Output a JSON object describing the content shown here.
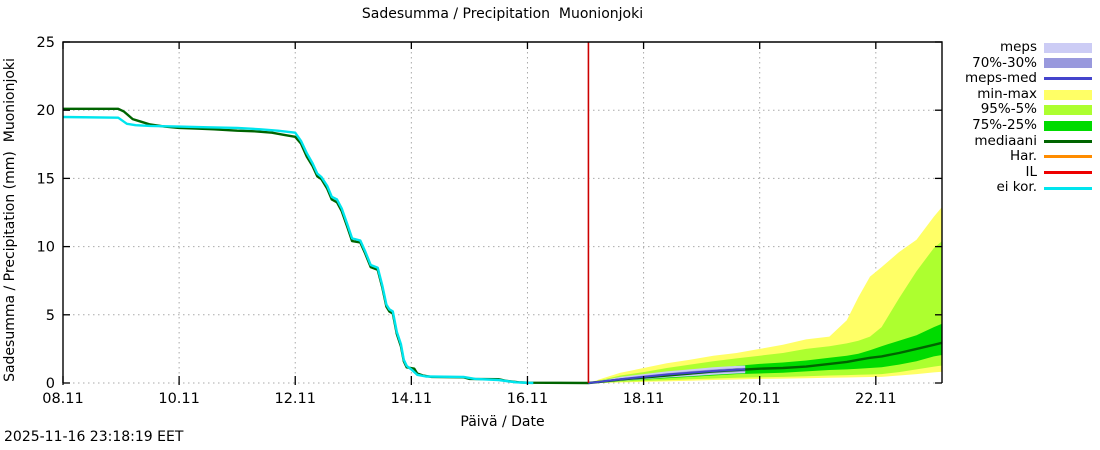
{
  "title": "Sadesumma / Precipitation  Muonionjoki",
  "timestamp": "2025-11-16 23:18:19 EET",
  "axes": {
    "y_label": "Sadesumma / Precipitation (mm)  Muonionjoki",
    "x_label": "Päivä / Date",
    "y_ticks": [
      0,
      5,
      10,
      15,
      20,
      25
    ],
    "x_tick_labels": [
      "08.11",
      "10.11",
      "12.11",
      "14.11",
      "16.11",
      "18.11",
      "20.11",
      "22.11"
    ],
    "x_tick_days": [
      8,
      10,
      12,
      14,
      16,
      18,
      20,
      22
    ]
  },
  "colors": {
    "meps_band": "#ccccf5",
    "meps7030_band": "#9999dd",
    "meps_med_line": "#4444cc",
    "minmax_band": "#ffff66",
    "p95_band": "#adff2f",
    "p75_band": "#00db00",
    "mediaani_line": "#006400",
    "har_line": "#ff8c00",
    "il_line": "#ee0000",
    "eikor_line": "#00e5ee",
    "now_line": "#cc0000",
    "grid": "#aaaaaa",
    "frame": "#000000"
  },
  "chart_data": {
    "type": "line",
    "title": "Sadesumma / Precipitation  Muonionjoki",
    "xlabel": "Päivä / Date",
    "ylabel": "Sadesumma / Precipitation (mm)  Muonionjoki",
    "x_unit": "day of November (label DD.11)",
    "xlim": [
      8,
      23.14
    ],
    "ylim": [
      0,
      25
    ],
    "grid": "dotted, horizontal every 5 mm, vertical every 2 days, dotted zero axis",
    "legend_position": "outside right",
    "forecast_start_day": 17.05,
    "legend": [
      {
        "label": "meps",
        "type": "band",
        "color": "#ccccf5"
      },
      {
        "label": "70%-30%",
        "type": "band",
        "color": "#9999dd"
      },
      {
        "label": "meps-med",
        "type": "line",
        "color": "#4444cc"
      },
      {
        "label": "min-max",
        "type": "band",
        "color": "#ffff66"
      },
      {
        "label": "95%-5%",
        "type": "band",
        "color": "#adff2f"
      },
      {
        "label": "75%-25%",
        "type": "band",
        "color": "#00db00"
      },
      {
        "label": "mediaani",
        "type": "line",
        "color": "#006400"
      },
      {
        "label": "Har.",
        "type": "line",
        "color": "#ff8c00"
      },
      {
        "label": "IL",
        "type": "line",
        "color": "#ee0000"
      },
      {
        "label": "ei kor.",
        "type": "line",
        "color": "#00e5ee"
      }
    ],
    "series": [
      {
        "name": "mediaani",
        "color": "#006400",
        "width": 2.4,
        "points": [
          [
            8.0,
            20.1
          ],
          [
            8.95,
            20.1
          ],
          [
            9.05,
            19.9
          ],
          [
            9.2,
            19.35
          ],
          [
            9.35,
            19.15
          ],
          [
            9.5,
            18.95
          ],
          [
            9.75,
            18.8
          ],
          [
            10.0,
            18.7
          ],
          [
            10.3,
            18.65
          ],
          [
            10.6,
            18.6
          ],
          [
            11.0,
            18.5
          ],
          [
            11.3,
            18.45
          ],
          [
            11.6,
            18.35
          ],
          [
            11.8,
            18.2
          ],
          [
            12.0,
            18.05
          ],
          [
            12.1,
            17.55
          ],
          [
            12.2,
            16.6
          ],
          [
            12.3,
            15.9
          ],
          [
            12.38,
            15.15
          ],
          [
            12.45,
            14.95
          ],
          [
            12.55,
            14.25
          ],
          [
            12.63,
            13.45
          ],
          [
            12.72,
            13.25
          ],
          [
            12.8,
            12.6
          ],
          [
            12.9,
            11.4
          ],
          [
            12.98,
            10.4
          ],
          [
            13.12,
            10.3
          ],
          [
            13.2,
            9.55
          ],
          [
            13.3,
            8.5
          ],
          [
            13.42,
            8.3
          ],
          [
            13.5,
            7.0
          ],
          [
            13.57,
            5.6
          ],
          [
            13.62,
            5.25
          ],
          [
            13.68,
            5.1
          ],
          [
            13.75,
            3.6
          ],
          [
            13.82,
            2.7
          ],
          [
            13.87,
            1.6
          ],
          [
            13.92,
            1.15
          ],
          [
            14.05,
            1.05
          ],
          [
            14.1,
            0.7
          ],
          [
            14.2,
            0.55
          ],
          [
            14.35,
            0.45
          ],
          [
            14.9,
            0.42
          ],
          [
            15.0,
            0.3
          ],
          [
            15.5,
            0.28
          ],
          [
            15.65,
            0.15
          ],
          [
            15.85,
            0.05
          ],
          [
            16.0,
            0.02
          ],
          [
            17.05,
            0.0
          ],
          [
            17.3,
            0.1
          ],
          [
            17.6,
            0.25
          ],
          [
            18.0,
            0.4
          ],
          [
            18.4,
            0.55
          ],
          [
            18.8,
            0.7
          ],
          [
            19.2,
            0.85
          ],
          [
            19.6,
            0.95
          ],
          [
            20.0,
            1.05
          ],
          [
            20.4,
            1.1
          ],
          [
            20.8,
            1.2
          ],
          [
            21.2,
            1.4
          ],
          [
            21.5,
            1.55
          ],
          [
            21.7,
            1.7
          ],
          [
            21.9,
            1.85
          ],
          [
            22.1,
            1.95
          ],
          [
            22.4,
            2.2
          ],
          [
            22.7,
            2.5
          ],
          [
            23.0,
            2.8
          ],
          [
            23.14,
            2.95
          ]
        ]
      },
      {
        "name": "ei kor.",
        "color": "#00e5ee",
        "width": 2.4,
        "points": [
          [
            8.0,
            19.5
          ],
          [
            8.95,
            19.45
          ],
          [
            9.1,
            19.0
          ],
          [
            9.25,
            18.9
          ],
          [
            9.5,
            18.85
          ],
          [
            10.0,
            18.8
          ],
          [
            10.5,
            18.75
          ],
          [
            11.0,
            18.7
          ],
          [
            11.4,
            18.6
          ],
          [
            11.7,
            18.5
          ],
          [
            12.0,
            18.35
          ],
          [
            12.1,
            17.75
          ],
          [
            12.2,
            16.85
          ],
          [
            12.3,
            16.1
          ],
          [
            12.38,
            15.35
          ],
          [
            12.45,
            15.1
          ],
          [
            12.55,
            14.45
          ],
          [
            12.63,
            13.65
          ],
          [
            12.72,
            13.45
          ],
          [
            12.8,
            12.8
          ],
          [
            12.9,
            11.6
          ],
          [
            12.98,
            10.6
          ],
          [
            13.12,
            10.45
          ],
          [
            13.2,
            9.7
          ],
          [
            13.3,
            8.65
          ],
          [
            13.42,
            8.45
          ],
          [
            13.5,
            7.15
          ],
          [
            13.57,
            5.75
          ],
          [
            13.62,
            5.4
          ],
          [
            13.68,
            5.25
          ],
          [
            13.75,
            3.75
          ],
          [
            13.82,
            2.85
          ],
          [
            13.87,
            1.7
          ],
          [
            13.92,
            1.25
          ],
          [
            14.0,
            1.0
          ],
          [
            14.1,
            0.6
          ],
          [
            14.25,
            0.48
          ],
          [
            14.9,
            0.45
          ],
          [
            15.1,
            0.3
          ],
          [
            15.5,
            0.22
          ],
          [
            15.8,
            0.05
          ],
          [
            16.1,
            0.0
          ]
        ]
      },
      {
        "name": "meps-med",
        "color": "#4444cc",
        "width": 2,
        "points": [
          [
            17.05,
            0.0
          ],
          [
            17.3,
            0.12
          ],
          [
            17.6,
            0.28
          ],
          [
            18.0,
            0.45
          ],
          [
            18.4,
            0.62
          ],
          [
            18.8,
            0.75
          ],
          [
            19.2,
            0.88
          ],
          [
            19.6,
            0.97
          ],
          [
            19.75,
            1.0
          ]
        ]
      }
    ],
    "bands": [
      {
        "name": "min-max",
        "color": "#ffff66",
        "t": [
          17.05,
          17.3,
          17.6,
          18.0,
          18.4,
          18.8,
          19.2,
          19.6,
          20.0,
          20.4,
          20.8,
          21.2,
          21.5,
          21.7,
          21.9,
          22.1,
          22.4,
          22.7,
          23.0,
          23.14
        ],
        "top": [
          0,
          0.35,
          0.75,
          1.1,
          1.45,
          1.7,
          2.0,
          2.2,
          2.5,
          2.8,
          3.2,
          3.4,
          4.6,
          6.3,
          7.8,
          8.5,
          9.6,
          10.5,
          12.2,
          12.9
        ],
        "bottom": [
          0,
          0.01,
          0.04,
          0.08,
          0.12,
          0.17,
          0.22,
          0.26,
          0.3,
          0.32,
          0.35,
          0.38,
          0.4,
          0.42,
          0.44,
          0.45,
          0.55,
          0.65,
          0.78,
          0.82
        ]
      },
      {
        "name": "95%-5%",
        "color": "#adff2f",
        "t": [
          17.05,
          17.3,
          17.6,
          18.0,
          18.4,
          18.8,
          19.2,
          19.6,
          20.0,
          20.4,
          20.8,
          21.2,
          21.5,
          21.7,
          21.9,
          22.1,
          22.4,
          22.7,
          23.0,
          23.14
        ],
        "top": [
          0,
          0.25,
          0.55,
          0.8,
          1.1,
          1.35,
          1.6,
          1.8,
          2.0,
          2.2,
          2.5,
          2.7,
          2.9,
          3.1,
          3.4,
          4.1,
          6.2,
          8.2,
          9.9,
          10.4
        ],
        "bottom": [
          0,
          0.02,
          0.08,
          0.15,
          0.2,
          0.28,
          0.33,
          0.38,
          0.42,
          0.45,
          0.5,
          0.55,
          0.58,
          0.6,
          0.62,
          0.65,
          0.8,
          1.0,
          1.2,
          1.28
        ]
      },
      {
        "name": "75%-25%",
        "color": "#00db00",
        "t": [
          17.05,
          17.3,
          17.6,
          18.0,
          18.4,
          18.8,
          19.2,
          19.6,
          20.0,
          20.4,
          20.8,
          21.2,
          21.5,
          21.7,
          21.9,
          22.1,
          22.4,
          22.7,
          23.0,
          23.14
        ],
        "top": [
          0,
          0.18,
          0.4,
          0.6,
          0.8,
          0.95,
          1.1,
          1.25,
          1.4,
          1.5,
          1.65,
          1.85,
          2.0,
          2.15,
          2.4,
          2.7,
          3.1,
          3.5,
          4.1,
          4.35
        ],
        "bottom": [
          0,
          0.05,
          0.15,
          0.25,
          0.35,
          0.45,
          0.55,
          0.65,
          0.7,
          0.75,
          0.85,
          0.95,
          1.0,
          1.05,
          1.1,
          1.15,
          1.35,
          1.6,
          1.95,
          2.05
        ]
      },
      {
        "name": "meps",
        "color": "#ccccf5",
        "t": [
          17.05,
          17.3,
          17.6,
          18.0,
          18.4,
          18.8,
          19.2,
          19.6,
          19.75
        ],
        "top": [
          0,
          0.2,
          0.45,
          0.65,
          0.85,
          1.0,
          1.15,
          1.25,
          1.28
        ],
        "bottom": [
          0,
          0.05,
          0.15,
          0.28,
          0.4,
          0.5,
          0.6,
          0.7,
          0.72
        ]
      },
      {
        "name": "70%-30%",
        "color": "#9999dd",
        "t": [
          17.05,
          17.3,
          17.6,
          18.0,
          18.4,
          18.8,
          19.2,
          19.6,
          19.75
        ],
        "top": [
          0,
          0.15,
          0.35,
          0.55,
          0.72,
          0.87,
          1.0,
          1.1,
          1.12
        ],
        "bottom": [
          0,
          0.08,
          0.2,
          0.35,
          0.5,
          0.6,
          0.72,
          0.8,
          0.82
        ]
      }
    ],
    "annotations": [
      {
        "type": "vline",
        "x_day": 17.05,
        "color": "#cc0000",
        "meaning": "forecast start / now"
      }
    ]
  }
}
